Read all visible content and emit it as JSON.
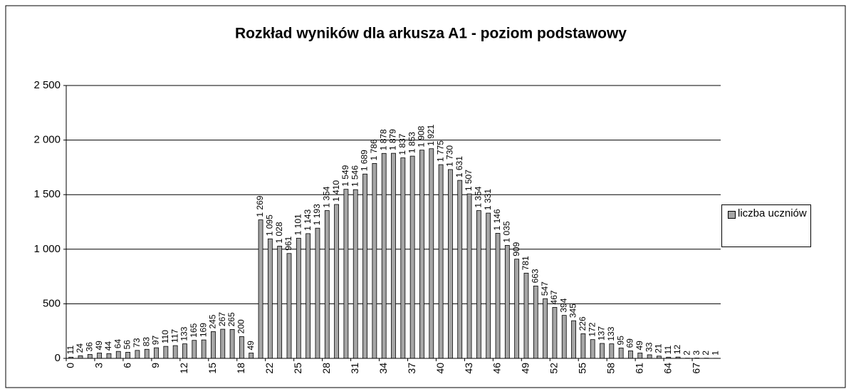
{
  "chart_data": {
    "type": "bar",
    "title": "Rozkład wyników dla arkusza A1 - poziom podstawowy",
    "categories": [
      "0",
      "1",
      "2",
      "3",
      "4",
      "5",
      "6",
      "7",
      "8",
      "9",
      "10",
      "11",
      "12",
      "13",
      "14",
      "15",
      "16",
      "17",
      "18",
      "19",
      "21",
      "22",
      "23",
      "24",
      "25",
      "26",
      "27",
      "28",
      "29",
      "30",
      "31",
      "32",
      "33",
      "34",
      "35",
      "36",
      "37",
      "38",
      "39",
      "40",
      "41",
      "42",
      "43",
      "44",
      "45",
      "46",
      "47",
      "48",
      "49",
      "50",
      "51",
      "52",
      "53",
      "54",
      "55",
      "56",
      "57",
      "58",
      "59",
      "60",
      "61",
      "62",
      "63",
      "64",
      "65",
      "66",
      "67",
      "68",
      "69"
    ],
    "series": [
      {
        "name": "liczba uczniów",
        "color": "#a6a6a6",
        "values": [
          11,
          24,
          36,
          49,
          44,
          64,
          56,
          73,
          83,
          97,
          110,
          117,
          133,
          165,
          169,
          245,
          267,
          265,
          200,
          49,
          1269,
          1095,
          1028,
          961,
          1101,
          1143,
          1193,
          1354,
          1410,
          1549,
          1546,
          1689,
          1786,
          1878,
          1879,
          1837,
          1853,
          1908,
          1921,
          1775,
          1730,
          1631,
          1507,
          1354,
          1331,
          1146,
          1035,
          909,
          781,
          663,
          547,
          467,
          394,
          345,
          226,
          172,
          137,
          133,
          95,
          69,
          49,
          33,
          21,
          11,
          12,
          2,
          3,
          2,
          1
        ],
        "value_labels": [
          "11",
          "24",
          "36",
          "49",
          "44",
          "64",
          "56",
          "73",
          "83",
          "97",
          "110",
          "117",
          "133",
          "165",
          "169",
          "245",
          "267",
          "265",
          "200",
          "49",
          "1 269",
          "1 095",
          "1 028",
          "961",
          "1 101",
          "1 143",
          "1 193",
          "1 354",
          "1 410",
          "1 549",
          "1 546",
          "1 689",
          "1 786",
          "1 878",
          "1 879",
          "1 837",
          "1 853",
          "1 908",
          "1 921",
          "1 775",
          "1 730",
          "1 631",
          "1 507",
          "1 354",
          "1 331",
          "1 146",
          "1 035",
          "909",
          "781",
          "663",
          "547",
          "467",
          "394",
          "345",
          "226",
          "172",
          "137",
          "133",
          "95",
          "69",
          "49",
          "33",
          "21",
          "11",
          "12",
          "2",
          "3",
          "2",
          "1"
        ]
      }
    ],
    "ylim": [
      0,
      2500
    ],
    "yticks": [
      0,
      500,
      {
        "value": 1000,
        "label": "1 000"
      },
      {
        "value": 1500,
        "label": "1 500"
      },
      {
        "value": 2000,
        "label": "2 000"
      },
      {
        "value": 2500,
        "label": "2 500"
      }
    ],
    "xtick_step": 3,
    "grid": true,
    "legend": "right"
  }
}
